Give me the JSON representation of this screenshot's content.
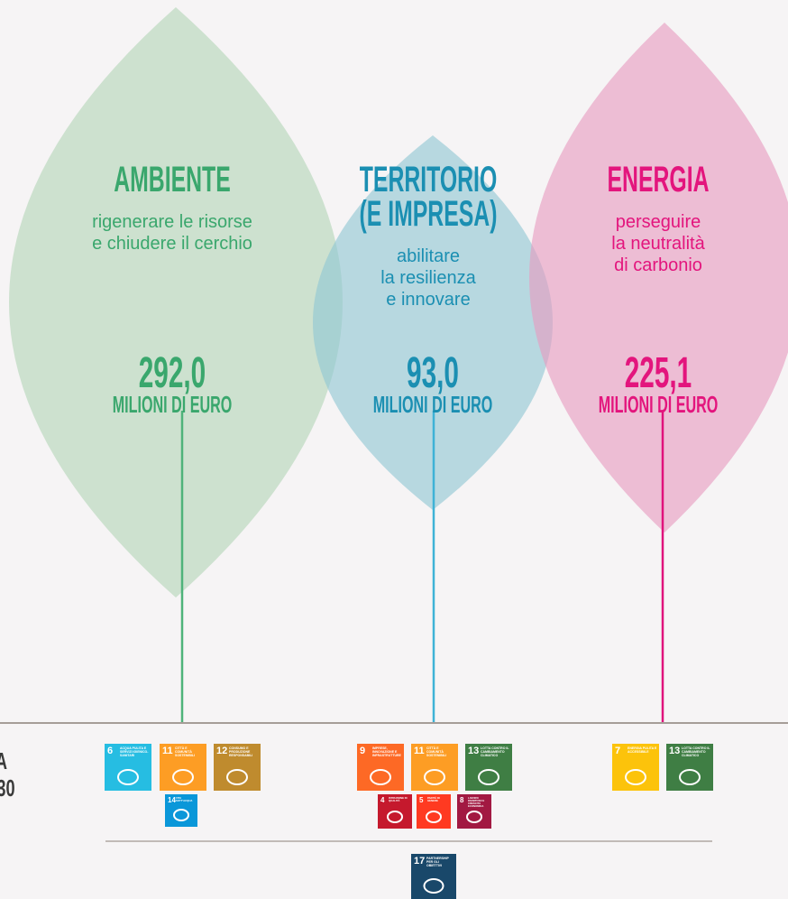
{
  "edge_label": [
    "A",
    "30"
  ],
  "pillars": [
    {
      "title": [
        "AMBIENTE"
      ],
      "subtitle": [
        "rigenerare le risorse",
        "e chiudere il cerchio"
      ],
      "value": "292,0",
      "unit": "MILIONI DI EURO"
    },
    {
      "title": [
        "TERRITORIO",
        "(E IMPRESA)"
      ],
      "subtitle": [
        "abilitare",
        "la resilienza",
        "e innovare"
      ],
      "value": "93,0",
      "unit": "MILIONI DI EURO"
    },
    {
      "title": [
        "ENERGIA"
      ],
      "subtitle": [
        "perseguire",
        "la neutralità",
        "di carbonio"
      ],
      "value": "225,1",
      "unit": "MILIONI DI EURO"
    }
  ],
  "sdgs": [
    {
      "number": "6",
      "label": "ACQUA PULITA E SERVIZI IGIENICO-SANITARI"
    },
    {
      "number": "11",
      "label": "CITTÀ E COMUNITÀ SOSTENIBILI"
    },
    {
      "number": "12",
      "label": "CONSUMO E PRODUZIONE RESPONSABILI"
    },
    {
      "number": "14",
      "label": "VITA SOTT'ACQUA"
    },
    {
      "number": "9",
      "label": "IMPRESE, INNOVAZIONE E INFRASTRUTTURE"
    },
    {
      "number": "11",
      "label": "CITTÀ E COMUNITÀ SOSTENIBILI"
    },
    {
      "number": "13",
      "label": "LOTTA CONTRO IL CAMBIAMENTO CLIMATICO"
    },
    {
      "number": "4",
      "label": "ISTRUZIONE DI QUALITÀ"
    },
    {
      "number": "5",
      "label": "PARITÀ DI GENERE"
    },
    {
      "number": "8",
      "label": "LAVORO DIGNITOSO E CRESCITA ECONOMICA"
    },
    {
      "number": "7",
      "label": "ENERGIA PULITA E ACCESSIBILE"
    },
    {
      "number": "13",
      "label": "LOTTA CONTRO IL CAMBIAMENTO CLIMATICO"
    },
    {
      "number": "17",
      "label": "PARTNERSHIP PER GLI OBIETTIVI"
    }
  ]
}
